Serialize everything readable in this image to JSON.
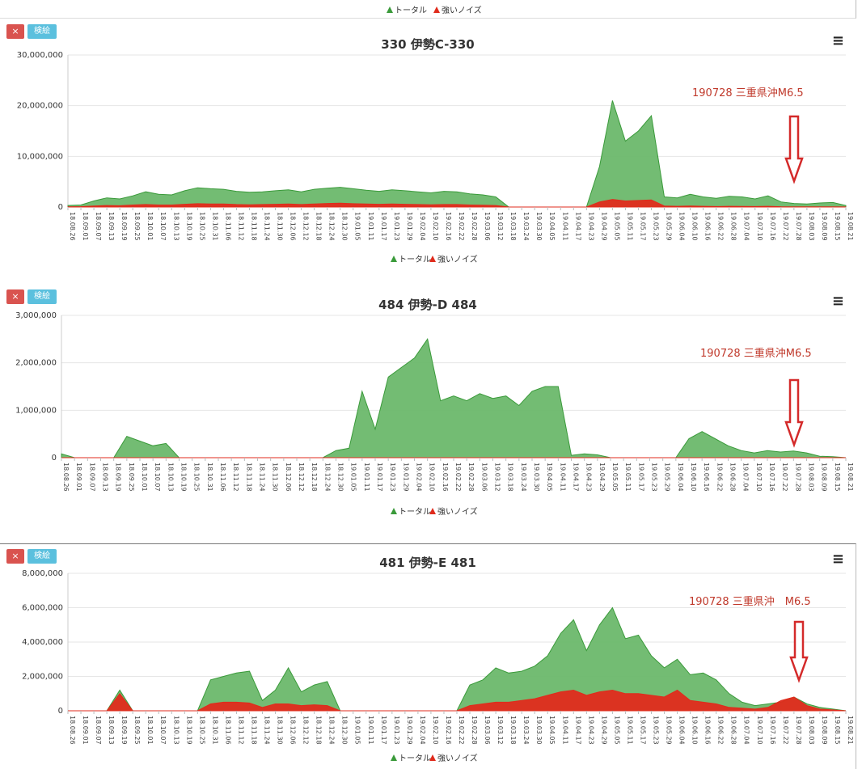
{
  "top_legend": {
    "total": "トータル",
    "noise": "強いノイズ"
  },
  "colors": {
    "total": "#3a9a3a",
    "total_fill": "#6cb86c",
    "noise": "#e02b1c",
    "annotation": "#c0392b",
    "close_button": "#d9534f",
    "edit_button": "#5bc0de"
  },
  "chart_data": [
    {
      "type": "area",
      "title": "330 伊勢C-330",
      "close_label": "×",
      "edit_label": "検絵",
      "ylim": [
        0,
        30000000
      ],
      "yticks": [
        "0",
        "10,000,000",
        "20,000,000",
        "30,000,000"
      ],
      "ytick_values": [
        0,
        10000000,
        20000000,
        30000000
      ],
      "x_labels": [
        "18.08.26",
        "18.09.01",
        "18.09.07",
        "18.09.13",
        "18.09.19",
        "18.09.25",
        "18.10.01",
        "18.10.07",
        "18.10.13",
        "18.10.19",
        "18.10.25",
        "18.10.31",
        "18.11.06",
        "18.11.12",
        "18.11.18",
        "18.11.24",
        "18.11.30",
        "18.12.06",
        "18.12.12",
        "18.12.18",
        "18.12.24",
        "18.12.30",
        "19.01.05",
        "19.01.11",
        "19.01.17",
        "19.01.23",
        "19.01.29",
        "19.02.04",
        "19.02.10",
        "19.02.16",
        "19.02.22",
        "19.02.28",
        "19.03.06",
        "19.03.12",
        "19.03.18",
        "19.03.24",
        "19.03.30",
        "19.04.05",
        "19.04.11",
        "19.04.17",
        "19.04.23",
        "19.04.29",
        "19.05.05",
        "19.05.11",
        "19.05.17",
        "19.05.23",
        "19.05.29",
        "19.06.04",
        "19.06.10",
        "19.06.16",
        "19.06.22",
        "19.06.28",
        "19.07.04",
        "19.07.10",
        "19.07.16",
        "19.07.22",
        "19.07.28",
        "19.08.03",
        "19.08.09",
        "19.08.15",
        "19.08.21"
      ],
      "series": [
        {
          "name": "トータル",
          "values": [
            300000,
            400000,
            1200000,
            1800000,
            1600000,
            2200000,
            3000000,
            2500000,
            2400000,
            3200000,
            3800000,
            3600000,
            3500000,
            3100000,
            2900000,
            3000000,
            3200000,
            3400000,
            3000000,
            3500000,
            3700000,
            3900000,
            3600000,
            3300000,
            3100000,
            3400000,
            3200000,
            3000000,
            2800000,
            3100000,
            3000000,
            2600000,
            2400000,
            2000000,
            0,
            0,
            0,
            0,
            0,
            0,
            0,
            8000000,
            21000000,
            13000000,
            15000000,
            18000000,
            2000000,
            1800000,
            2500000,
            2000000,
            1700000,
            2100000,
            2000000,
            1600000,
            2200000,
            1000000,
            700000,
            600000,
            800000,
            900000,
            300000
          ]
        },
        {
          "name": "強いノイズ",
          "values": [
            50000,
            80000,
            200000,
            300000,
            250000,
            400000,
            500000,
            400000,
            400000,
            550000,
            650000,
            600000,
            600000,
            500000,
            450000,
            500000,
            550000,
            600000,
            500000,
            600000,
            700000,
            750000,
            650000,
            600000,
            550000,
            600000,
            550000,
            500000,
            450000,
            500000,
            500000,
            400000,
            350000,
            300000,
            0,
            0,
            0,
            0,
            0,
            0,
            0,
            1000000,
            1500000,
            1200000,
            1300000,
            1400000,
            200000,
            150000,
            200000,
            150000,
            100000,
            150000,
            120000,
            100000,
            150000,
            60000,
            40000,
            30000,
            40000,
            50000,
            20000
          ]
        }
      ],
      "annotation": "190728 三重県沖M6.5",
      "legend": {
        "total": "トータル",
        "noise": "強いノイズ"
      }
    },
    {
      "type": "area",
      "title": "484 伊勢-D 484",
      "close_label": "×",
      "edit_label": "検絵",
      "ylim": [
        0,
        3000000
      ],
      "yticks": [
        "0",
        "1,000,000",
        "2,000,000",
        "3,000,000"
      ],
      "ytick_values": [
        0,
        1000000,
        2000000,
        3000000
      ],
      "x_labels": [
        "18.08.26",
        "18.09.01",
        "18.09.07",
        "18.09.13",
        "18.09.19",
        "18.09.25",
        "18.10.01",
        "18.10.07",
        "18.10.13",
        "18.10.19",
        "18.10.25",
        "18.10.31",
        "18.11.06",
        "18.11.12",
        "18.11.18",
        "18.11.24",
        "18.11.30",
        "18.12.06",
        "18.12.12",
        "18.12.18",
        "18.12.24",
        "18.12.30",
        "19.01.05",
        "19.01.11",
        "19.01.17",
        "19.01.23",
        "19.01.29",
        "19.02.04",
        "19.02.10",
        "19.02.16",
        "19.02.22",
        "19.02.28",
        "19.03.06",
        "19.03.12",
        "19.03.18",
        "19.03.24",
        "19.03.30",
        "19.04.05",
        "19.04.11",
        "19.04.17",
        "19.04.23",
        "19.04.29",
        "19.05.05",
        "19.05.11",
        "19.05.17",
        "19.05.23",
        "19.05.29",
        "19.06.04",
        "19.06.10",
        "19.06.16",
        "19.06.22",
        "19.06.28",
        "19.07.04",
        "19.07.10",
        "19.07.16",
        "19.07.22",
        "19.07.28",
        "19.08.03",
        "19.08.09",
        "19.08.15",
        "19.08.21"
      ],
      "series": [
        {
          "name": "トータル",
          "values": [
            80000,
            0,
            0,
            0,
            0,
            450000,
            350000,
            250000,
            300000,
            0,
            0,
            0,
            0,
            0,
            0,
            0,
            0,
            0,
            0,
            0,
            0,
            150000,
            200000,
            1400000,
            600000,
            1700000,
            1900000,
            2100000,
            2500000,
            1200000,
            1300000,
            1200000,
            1350000,
            1250000,
            1300000,
            1100000,
            1400000,
            1500000,
            1500000,
            50000,
            80000,
            60000,
            0,
            0,
            0,
            0,
            0,
            0,
            400000,
            550000,
            400000,
            250000,
            150000,
            100000,
            150000,
            120000,
            140000,
            100000,
            30000,
            20000,
            0
          ]
        },
        {
          "name": "強いノイズ",
          "values": [
            0,
            0,
            0,
            0,
            0,
            0,
            0,
            0,
            0,
            0,
            0,
            0,
            0,
            0,
            0,
            0,
            0,
            0,
            0,
            0,
            0,
            0,
            0,
            0,
            0,
            0,
            0,
            0,
            0,
            0,
            0,
            0,
            0,
            0,
            0,
            0,
            0,
            0,
            0,
            0,
            0,
            0,
            0,
            0,
            0,
            0,
            0,
            0,
            0,
            0,
            0,
            0,
            0,
            0,
            0,
            0,
            0,
            0,
            0,
            0,
            0
          ]
        }
      ],
      "annotation": "190728 三重県沖M6.5",
      "legend": {
        "total": "トータル",
        "noise": "強いノイズ"
      }
    },
    {
      "type": "area",
      "title": "481 伊勢-E 481",
      "close_label": "×",
      "edit_label": "検絵",
      "ylim": [
        0,
        8000000
      ],
      "yticks": [
        "0",
        "2,000,000",
        "4,000,000",
        "6,000,000",
        "8,000,000"
      ],
      "ytick_values": [
        0,
        2000000,
        4000000,
        6000000,
        8000000
      ],
      "x_labels": [
        "18.08.26",
        "18.09.01",
        "18.09.07",
        "18.09.13",
        "18.09.19",
        "18.09.25",
        "18.10.01",
        "18.10.07",
        "18.10.13",
        "18.10.19",
        "18.10.25",
        "18.10.31",
        "18.11.06",
        "18.11.12",
        "18.11.18",
        "18.11.24",
        "18.11.30",
        "18.12.06",
        "18.12.12",
        "18.12.18",
        "18.12.24",
        "18.12.30",
        "19.01.05",
        "19.01.11",
        "19.01.17",
        "19.01.23",
        "19.01.29",
        "19.02.04",
        "19.02.10",
        "19.02.16",
        "19.02.22",
        "19.02.28",
        "19.03.06",
        "19.03.12",
        "19.03.18",
        "19.03.24",
        "19.03.30",
        "19.04.05",
        "19.04.11",
        "19.04.17",
        "19.04.23",
        "19.04.29",
        "19.05.05",
        "19.05.11",
        "19.05.17",
        "19.05.23",
        "19.05.29",
        "19.06.04",
        "19.06.10",
        "19.06.16",
        "19.06.22",
        "19.06.28",
        "19.07.04",
        "19.07.10",
        "19.07.16",
        "19.07.22",
        "19.07.28",
        "19.08.03",
        "19.08.09",
        "19.08.15",
        "19.08.21"
      ],
      "series": [
        {
          "name": "トータル",
          "values": [
            0,
            0,
            0,
            0,
            1200000,
            0,
            0,
            0,
            0,
            0,
            0,
            1800000,
            2000000,
            2200000,
            2300000,
            600000,
            1200000,
            2500000,
            1100000,
            1500000,
            1700000,
            0,
            0,
            0,
            0,
            0,
            0,
            0,
            0,
            0,
            0,
            1500000,
            1800000,
            2500000,
            2200000,
            2300000,
            2600000,
            3200000,
            4500000,
            5300000,
            3500000,
            5000000,
            6000000,
            4200000,
            4400000,
            3200000,
            2500000,
            3000000,
            2100000,
            2200000,
            1800000,
            1000000,
            500000,
            300000,
            400000,
            500000,
            800000,
            400000,
            200000,
            100000,
            0
          ]
        },
        {
          "name": "強いノイズ",
          "values": [
            0,
            0,
            0,
            0,
            1000000,
            0,
            0,
            0,
            0,
            0,
            0,
            400000,
            500000,
            500000,
            450000,
            200000,
            400000,
            400000,
            300000,
            350000,
            300000,
            0,
            0,
            0,
            0,
            0,
            0,
            0,
            0,
            0,
            0,
            300000,
            400000,
            500000,
            500000,
            600000,
            700000,
            900000,
            1100000,
            1200000,
            900000,
            1100000,
            1200000,
            1000000,
            1000000,
            900000,
            800000,
            1200000,
            600000,
            500000,
            400000,
            200000,
            150000,
            100000,
            200000,
            600000,
            800000,
            300000,
            100000,
            50000,
            0
          ]
        }
      ],
      "annotation": "190728 三重県沖　M6.5",
      "legend": {
        "total": "トータル",
        "noise": "強いノイズ"
      }
    }
  ]
}
